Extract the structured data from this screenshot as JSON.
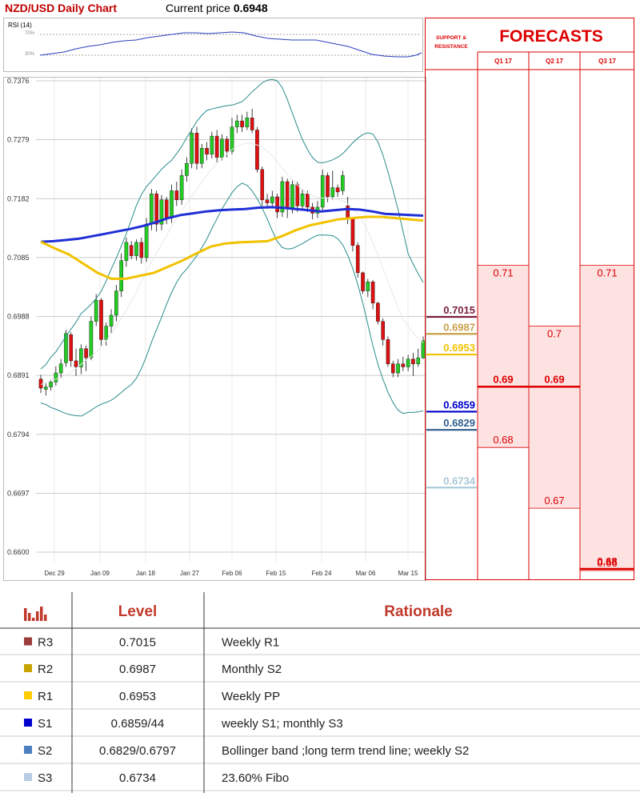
{
  "header": {
    "chart_title": "NZD/USD Daily Chart",
    "current_price_label": "Current price",
    "current_price_value": "0.6948"
  },
  "rsi": {
    "label": "RSI (14)",
    "ticks": [
      "70%",
      "30%"
    ]
  },
  "support_resistance_header": "SUPPORT & RESISTANCE",
  "forecasts": {
    "title": "FORECASTS",
    "quarters": [
      "Q1 17",
      "Q2 17",
      "Q3 17"
    ],
    "Q1 17": {
      "high": "0.71",
      "mid": "0.69",
      "low": "0.68"
    },
    "Q2 17": {
      "high": "0.7",
      "mid": "0.69",
      "low": "0.67"
    },
    "Q3 17": {
      "high": "0.71",
      "mid": "0.68",
      "low": "0.66"
    }
  },
  "sr_levels": [
    {
      "value": "0.7015",
      "color": "#7a1f3d"
    },
    {
      "value": "0.6987",
      "color": "#c8a04a"
    },
    {
      "value": "0.6953",
      "color": "#f2c200"
    },
    {
      "value": "0.6859",
      "color": "#0000cc"
    },
    {
      "value": "0.6829",
      "color": "#2f5f8f"
    },
    {
      "value": "0.6734",
      "color": "#a9c8d8"
    }
  ],
  "table": {
    "icon": "bar-chart-icon",
    "level_header": "Level",
    "rationale_header": "Rationale",
    "rows": [
      {
        "tag": "R3",
        "level": "0.7015",
        "rationale": "Weekly R1",
        "color": "#9b3b3b"
      },
      {
        "tag": "R2",
        "level": "0.6987",
        "rationale": "Monthly S2",
        "color": "#c9a300"
      },
      {
        "tag": "R1",
        "level": "0.6953",
        "rationale": "Weekly PP",
        "color": "#ffcc00"
      },
      {
        "tag": "S1",
        "level": "0.6859/44",
        "rationale": "weekly S1; monthly S3",
        "color": "#0000cc"
      },
      {
        "tag": "S2",
        "level": "0.6829/0.6797",
        "rationale": "Bollinger band ;long term trend line; weekly S2",
        "color": "#4a7fc0"
      },
      {
        "tag": "S3",
        "level": "0.6734",
        "rationale": "23.60% Fibo",
        "color": "#b8cce4"
      }
    ]
  },
  "chart_data": {
    "type": "candlestick",
    "title": "NZD/USD Daily Chart",
    "y_ticks": [
      "0.7376",
      "0.7279",
      "0.7182",
      "0.7085",
      "0.6988",
      "0.6891",
      "0.6794",
      "0.6697",
      "0.6600"
    ],
    "ylim": [
      0.66,
      0.7376
    ],
    "x_ticks": [
      "Dec 29",
      "Jan 09",
      "Jan 18",
      "Jan 27",
      "Feb 06",
      "Feb 15",
      "Feb 24",
      "Mar 06",
      "Mar 15"
    ],
    "grid": true,
    "candles": [
      [
        0.6885,
        0.687,
        0.6892,
        0.6862
      ],
      [
        0.6868,
        0.6872,
        0.6878,
        0.6858
      ],
      [
        0.6872,
        0.688,
        0.6884,
        0.6866
      ],
      [
        0.688,
        0.6895,
        0.6906,
        0.6874
      ],
      [
        0.6895,
        0.691,
        0.6918,
        0.6886
      ],
      [
        0.6912,
        0.696,
        0.6966,
        0.6905
      ],
      [
        0.6958,
        0.6915,
        0.6962,
        0.6905
      ],
      [
        0.6915,
        0.6905,
        0.6935,
        0.689
      ],
      [
        0.6905,
        0.6935,
        0.6942,
        0.6893
      ],
      [
        0.6935,
        0.692,
        0.694,
        0.6898
      ],
      [
        0.692,
        0.698,
        0.6988,
        0.6916
      ],
      [
        0.698,
        0.7015,
        0.7025,
        0.6972
      ],
      [
        0.7015,
        0.695,
        0.7018,
        0.694
      ],
      [
        0.695,
        0.6972,
        0.6978,
        0.694
      ],
      [
        0.6972,
        0.699,
        0.7,
        0.696
      ],
      [
        0.699,
        0.703,
        0.704,
        0.698
      ],
      [
        0.703,
        0.708,
        0.7092,
        0.702
      ],
      [
        0.708,
        0.711,
        0.7118,
        0.707
      ],
      [
        0.7105,
        0.7088,
        0.7112,
        0.7082
      ],
      [
        0.7088,
        0.711,
        0.7115,
        0.708
      ],
      [
        0.711,
        0.7085,
        0.7118,
        0.7075
      ],
      [
        0.7085,
        0.714,
        0.715,
        0.7078
      ],
      [
        0.714,
        0.719,
        0.7198,
        0.713
      ],
      [
        0.719,
        0.714,
        0.7195,
        0.7128
      ],
      [
        0.714,
        0.718,
        0.7188,
        0.713
      ],
      [
        0.718,
        0.715,
        0.7185,
        0.714
      ],
      [
        0.715,
        0.7195,
        0.7205,
        0.7142
      ],
      [
        0.7195,
        0.718,
        0.721,
        0.717
      ],
      [
        0.718,
        0.722,
        0.723,
        0.7172
      ],
      [
        0.722,
        0.724,
        0.725,
        0.721
      ],
      [
        0.724,
        0.729,
        0.7298,
        0.7232
      ],
      [
        0.729,
        0.724,
        0.73,
        0.723
      ],
      [
        0.724,
        0.7265,
        0.7272,
        0.7232
      ],
      [
        0.7265,
        0.7255,
        0.7275,
        0.7245
      ],
      [
        0.7255,
        0.7285,
        0.7292,
        0.7248
      ],
      [
        0.7285,
        0.725,
        0.7295,
        0.7242
      ],
      [
        0.725,
        0.728,
        0.7288,
        0.7245
      ],
      [
        0.728,
        0.726,
        0.7285,
        0.725
      ],
      [
        0.726,
        0.73,
        0.7315,
        0.7255
      ],
      [
        0.73,
        0.731,
        0.732,
        0.729
      ],
      [
        0.731,
        0.73,
        0.732,
        0.7292
      ],
      [
        0.73,
        0.7315,
        0.7325,
        0.7295
      ],
      [
        0.7315,
        0.7295,
        0.733,
        0.729
      ],
      [
        0.7295,
        0.723,
        0.73,
        0.7225
      ],
      [
        0.723,
        0.718,
        0.7235,
        0.717
      ],
      [
        0.718,
        0.7175,
        0.719,
        0.7165
      ],
      [
        0.7175,
        0.7185,
        0.7195,
        0.7168
      ],
      [
        0.7185,
        0.716,
        0.719,
        0.715
      ],
      [
        0.716,
        0.721,
        0.7218,
        0.7152
      ],
      [
        0.721,
        0.7165,
        0.7215,
        0.715
      ],
      [
        0.7165,
        0.7205,
        0.7212,
        0.7158
      ],
      [
        0.7205,
        0.717,
        0.721,
        0.716
      ],
      [
        0.717,
        0.719,
        0.7198,
        0.7162
      ],
      [
        0.719,
        0.7168,
        0.7195,
        0.716
      ],
      [
        0.7168,
        0.7158,
        0.7175,
        0.7148
      ],
      [
        0.7158,
        0.7168,
        0.7178,
        0.715
      ],
      [
        0.7168,
        0.722,
        0.723,
        0.716
      ],
      [
        0.722,
        0.7185,
        0.7225,
        0.7176
      ],
      [
        0.7185,
        0.72,
        0.7228,
        0.718
      ],
      [
        0.72,
        0.7193,
        0.7205,
        0.7185
      ],
      [
        0.7195,
        0.722,
        0.7228,
        0.7188
      ],
      [
        0.717,
        0.715,
        0.7185,
        0.714
      ],
      [
        0.715,
        0.7105,
        0.7152,
        0.7095
      ],
      [
        0.7105,
        0.706,
        0.711,
        0.7052
      ],
      [
        0.706,
        0.703,
        0.7062,
        0.7025
      ],
      [
        0.703,
        0.7045,
        0.705,
        0.702
      ],
      [
        0.7045,
        0.701,
        0.7048,
        0.7
      ],
      [
        0.701,
        0.698,
        0.7012,
        0.6975
      ],
      [
        0.698,
        0.695,
        0.6985,
        0.694
      ],
      [
        0.695,
        0.691,
        0.6955,
        0.6905
      ],
      [
        0.691,
        0.6895,
        0.6915,
        0.6888
      ],
      [
        0.6895,
        0.691,
        0.6918,
        0.6888
      ],
      [
        0.691,
        0.6905,
        0.6922,
        0.6898
      ],
      [
        0.6905,
        0.6918,
        0.6925,
        0.6898
      ],
      [
        0.6918,
        0.691,
        0.6928,
        0.689
      ],
      [
        0.691,
        0.692,
        0.6935,
        0.6905
      ],
      [
        0.692,
        0.6948,
        0.6955,
        0.6918
      ]
    ],
    "series": [
      {
        "values": [
          0.7111,
          0.7112,
          0.7114,
          0.7116,
          0.712,
          0.7124,
          0.7128,
          0.7132,
          0.7137,
          0.7143,
          0.715,
          0.7155,
          0.7158,
          0.7161,
          0.7163,
          0.7164,
          0.7165,
          0.7167,
          0.7168,
          0.7167,
          0.7165,
          0.7163,
          0.7161,
          0.7163,
          0.7165,
          0.7164,
          0.7161,
          0.7157,
          0.7156,
          0.7155,
          0.7154
        ]
      },
      {
        "values": [
          0.7111,
          0.71,
          0.709,
          0.7075,
          0.706,
          0.705,
          0.705,
          0.7055,
          0.706,
          0.707,
          0.708,
          0.7092,
          0.7103,
          0.7108,
          0.711,
          0.7111,
          0.7112,
          0.712,
          0.713,
          0.7138,
          0.7143,
          0.7148,
          0.715,
          0.7152,
          0.7152,
          0.715,
          0.7148,
          0.7146
        ]
      }
    ]
  }
}
